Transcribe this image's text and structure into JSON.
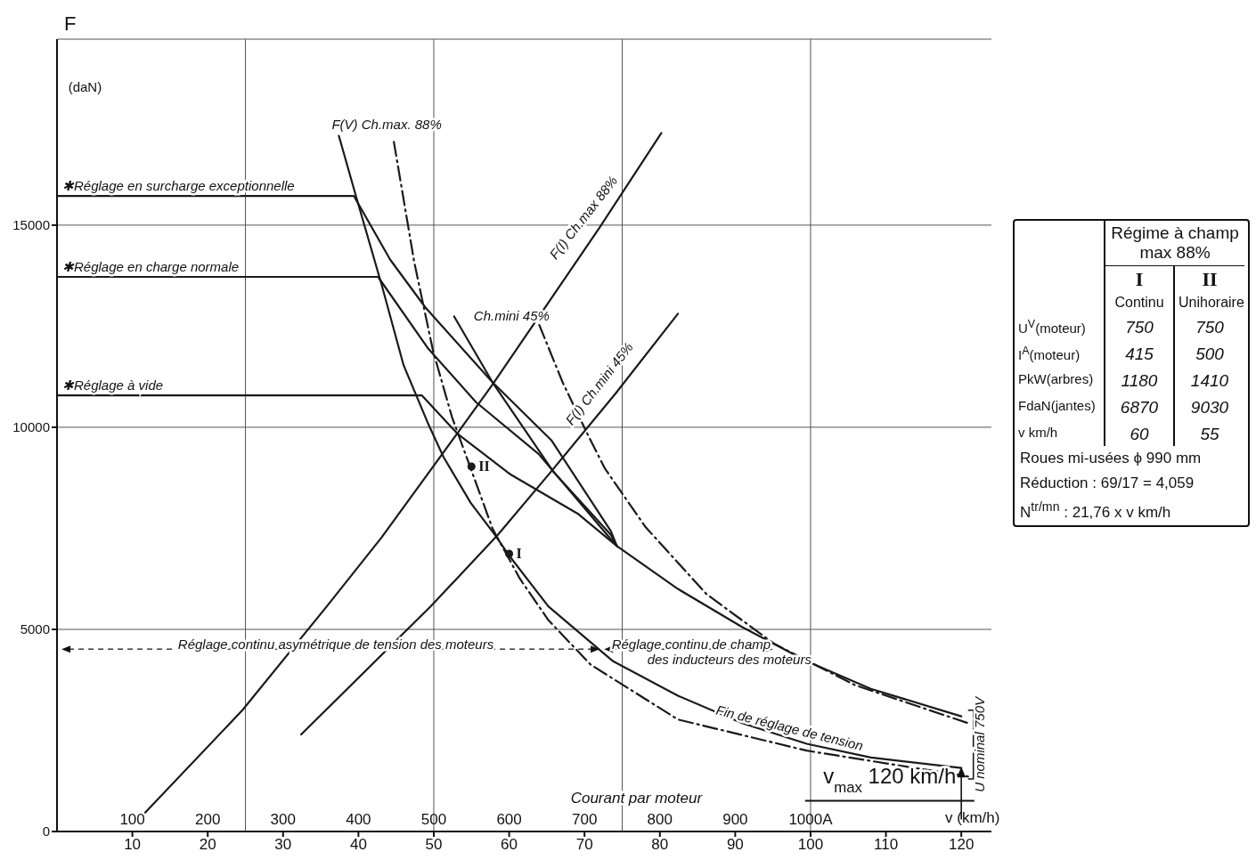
{
  "chart_data": [
    {
      "type": "line",
      "ylabel": "F",
      "xlabel": "v (km/h)",
      "x2label": "Courant par moteur",
      "xlim": [
        0,
        124
      ],
      "xticks": [
        10,
        20,
        30,
        40,
        50,
        60,
        70,
        80,
        90,
        100,
        110,
        120
      ],
      "x2lim": [
        0,
        1240
      ],
      "x2ticks": [
        100,
        200,
        300,
        400,
        500,
        600,
        700,
        800,
        900,
        {
          "value": 1000,
          "label": "1000A"
        }
      ],
      "ylim": [
        0,
        19600
      ],
      "yticks": [
        0,
        5000,
        10000,
        15000
      ],
      "grid": "y",
      "ref_lines": [
        {
          "axis": "x",
          "value": 25,
          "color": "#555555"
        },
        {
          "axis": "x",
          "value": 50,
          "color": "#555555"
        },
        {
          "axis": "x",
          "value": 75,
          "color": "#555555"
        },
        {
          "axis": "x",
          "value": 100,
          "color": "#555555"
        }
      ],
      "series": [
        {
          "color": "#1a1a1a",
          "x": [
            11.7,
            24.6,
            35.8,
            43.1,
            53.2,
            57.8,
            72.0,
            80.2
          ],
          "values": [
            470,
            3000,
            5570,
            7280,
            9870,
            11060,
            14940,
            17280
          ]
        },
        {
          "color": "#1a1a1a",
          "x": [
            32.4,
            49.6,
            58.5,
            65.6,
            74.1,
            82.4
          ],
          "values": [
            2400,
            5570,
            7340,
            8910,
            10830,
            12810
          ]
        },
        {
          "color": "#1a1a1a",
          "x": [
            37.4,
            39.9,
            43.1,
            46.0,
            49.2,
            51.3,
            54.9,
            58.1,
            59.9,
            65.2,
            73.8,
            82.4,
            90.9,
            99.5,
            108.0,
            120.0
          ],
          "values": [
            17210,
            15570,
            13510,
            11530,
            10110,
            9260,
            8130,
            7340,
            6850,
            5570,
            4210,
            3360,
            2680,
            2170,
            1830,
            1570
          ]
        },
        {
          "color": "#1a1a1a",
          "line_style": "dashed",
          "x": [
            44.7,
            47.4,
            49.9,
            52.4,
            54.9,
            57.8,
            61.4,
            65.2,
            70.8,
            82.4,
            99.5,
            120.9
          ],
          "values": [
            17060,
            14090,
            11890,
            10260,
            8980,
            7490,
            6260,
            5230,
            4130,
            2770,
            2000,
            1360
          ]
        },
        {
          "color": "#1a1a1a",
          "x": [
            0,
            39.4,
            44.2,
            48.9,
            57.8,
            65.6,
            73.5,
            74.3,
            82.4,
            90.9,
            99.5,
            108.0,
            120.0
          ],
          "values": [
            15720,
            15720,
            14150,
            12960,
            11110,
            9680,
            7430,
            7060,
            6000,
            5060,
            4210,
            3530,
            2850
          ]
        },
        {
          "color": "#1a1a1a",
          "x": [
            0,
            42.6,
            49.2,
            55.6,
            63.9,
            73.0,
            74.3
          ],
          "values": [
            13720,
            13720,
            11960,
            10620,
            9340,
            7340,
            7060
          ]
        },
        {
          "color": "#1a1a1a",
          "x": [
            0,
            48.4,
            53.2,
            60.2,
            69.2,
            74.3
          ],
          "values": [
            10790,
            10790,
            9830,
            8830,
            7850,
            7060
          ]
        },
        {
          "color": "#1a1a1a",
          "x": [
            52.7,
            57.8,
            65.9,
            73.5,
            74.3
          ],
          "values": [
            12740,
            11110,
            8890,
            7340,
            7060
          ]
        },
        {
          "color": "#1a1a1a",
          "line_style": "dashed",
          "x": [
            64.0,
            67.1,
            70.4,
            72.7,
            78.1,
            86.2,
            95.2,
            105.9,
            120.9
          ],
          "values": [
            12530,
            11110,
            9830,
            8980,
            7530,
            5870,
            4640,
            3620,
            2680
          ]
        },
        {
          "type": "scatter",
          "name": "I",
          "color": "#1a1a1a",
          "x": [
            60
          ],
          "values": [
            6870
          ]
        },
        {
          "type": "scatter",
          "name": "II",
          "color": "#1a1a1a",
          "x": [
            55
          ],
          "values": [
            9030
          ]
        }
      ],
      "annotations": [
        "(daN)",
        {
          "text": "F(V) Ch.max. 88%",
          "x": 37.4,
          "y": 17210
        },
        {
          "text": "✱Réglage en surcharge exceptionnelle",
          "x": 0,
          "y": 15720
        },
        {
          "text": "✱Réglage en charge normale",
          "x": 0,
          "y": 13720
        },
        {
          "text": "✱Réglage à vide",
          "x": 0,
          "y": 10790
        },
        {
          "text": "F(I) Ch.max 88%",
          "x": 72,
          "y": 14940
        },
        {
          "text": "Ch.mini 45%",
          "x": 52.7,
          "y": 12740
        },
        {
          "text": "F(I) Ch.mini 45%",
          "x": 74.1,
          "y": 10830
        },
        "Réglage continu asymétrique de tension des moteurs",
        "Réglage continu de champ\ndes inducteurs des moteurs",
        {
          "text": "Fin de réglage de tension",
          "x": 90.9,
          "y": 2680
        },
        "U nominal 750V",
        "v$_{max}$ 120 km/h"
      ]
    },
    {
      "type": "other",
      "title": "Régime à champ max 88%",
      "annotations": [
        "I",
        "II",
        "Continu",
        "Unihoraire",
        "U$^{V}$(moteur)",
        "750",
        "750",
        "I$^{A}$(moteur)",
        "415",
        "500",
        "PkW(arbres)",
        "1180",
        "1410",
        "FdaN(jantes)",
        "6870",
        "9030",
        "v km/h",
        "60",
        "55",
        "Roues mi-usées ϕ 990 mm",
        "Réduction : 69/17 = 4,059",
        "N$^{tr/mn}$ : 21,76 x v km/h"
      ]
    }
  ]
}
